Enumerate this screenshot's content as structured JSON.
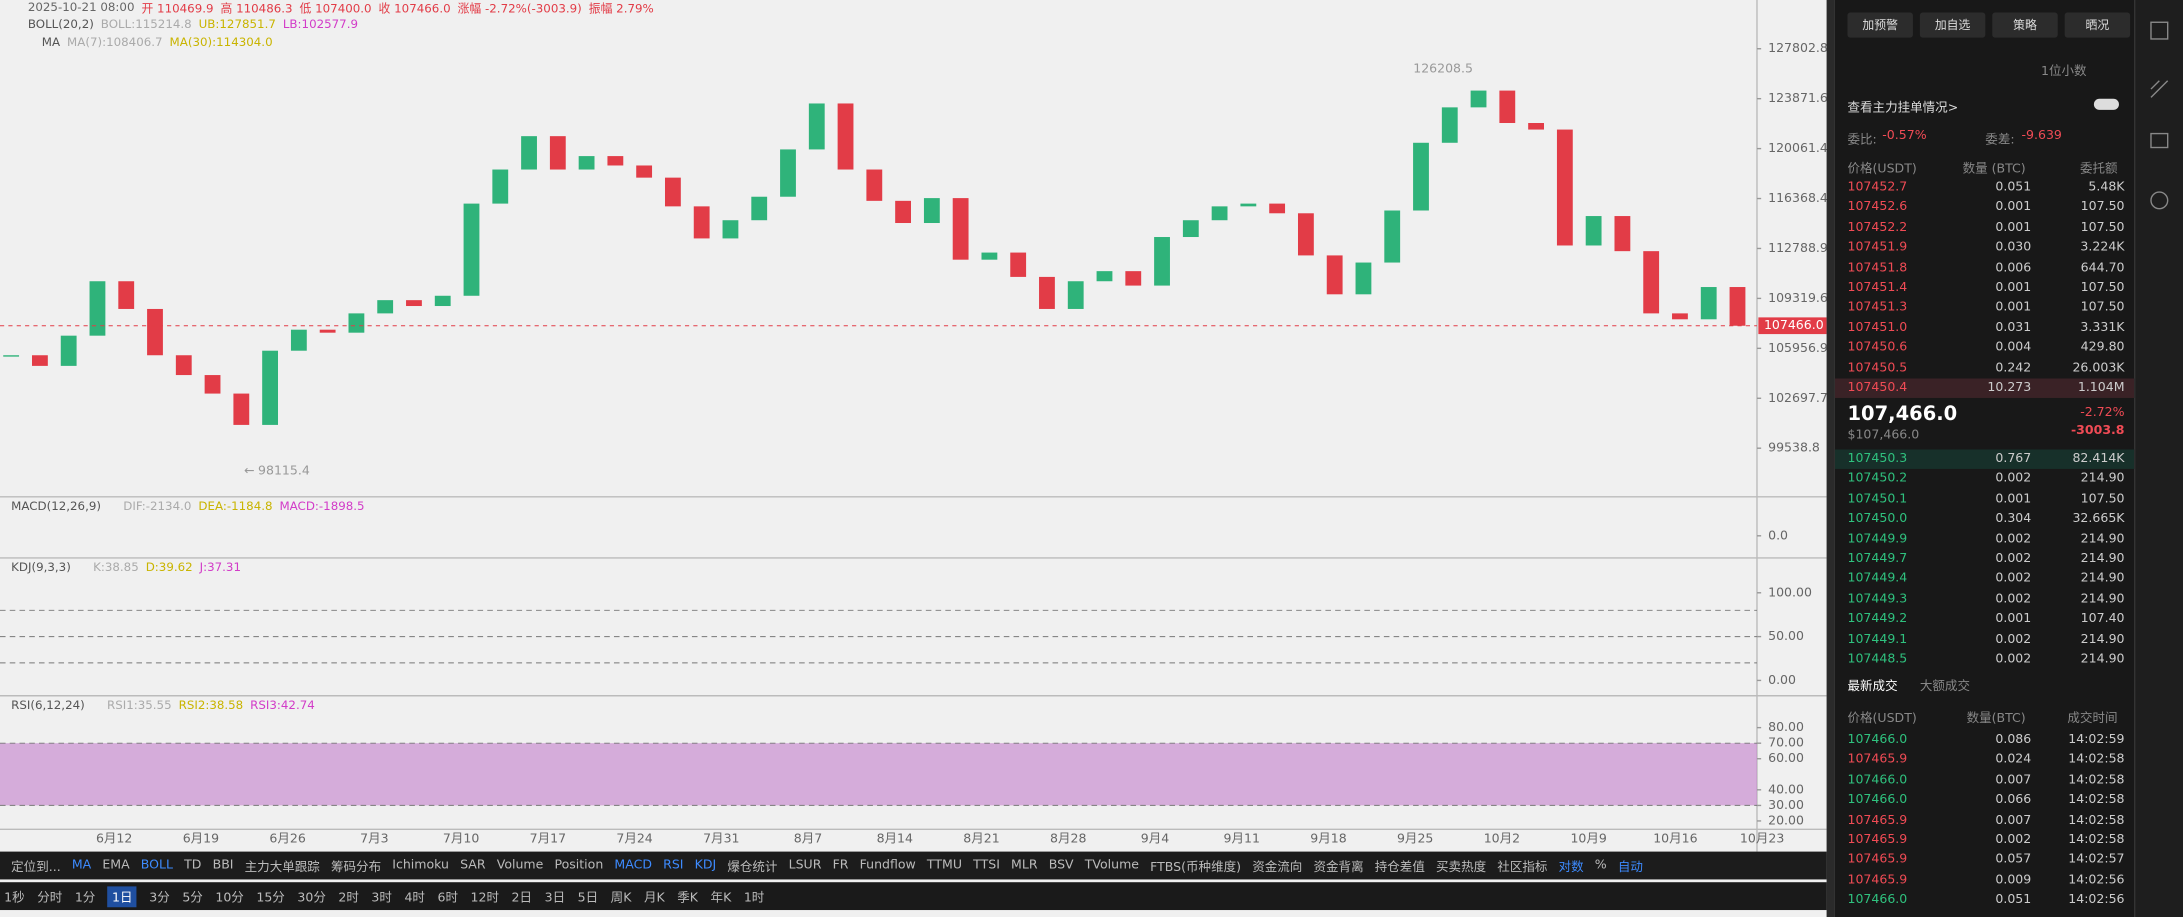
{
  "header": {
    "ohlc": [
      "2025-10-21 08:00",
      "开 110469.9",
      "高 110486.3",
      "低 107400.0",
      "收 107466.0",
      "涨幅 -2.72%(-3003.9)",
      "振幅 2.79%"
    ],
    "boll": [
      "BOLL(20,2)",
      "BOLL:115214.8",
      "UB:127851.7",
      "LB:102577.9"
    ],
    "ma": [
      "MA",
      "MA(7):108406.7",
      "MA(30):114304.0"
    ]
  },
  "chart_data": {
    "type": "candlestick",
    "log_scale": true,
    "up_color": "#2fb37a",
    "down_color": "#e23c47",
    "close": [
      105500,
      104800,
      106800,
      110500,
      108600,
      105500,
      104200,
      103000,
      101000,
      105800,
      107200,
      107000,
      108300,
      109200,
      108800,
      109500,
      116000,
      118500,
      121000,
      118500,
      119500,
      118800,
      117900,
      115800,
      113500,
      114800,
      116500,
      120000,
      123500,
      118500,
      116200,
      114600,
      116400,
      112000,
      112500,
      110800,
      108600,
      110500,
      111200,
      110200,
      113600,
      114800,
      115800,
      116000,
      115300,
      112300,
      109600,
      111800,
      115500,
      120500,
      123200,
      124500,
      122000,
      121500,
      113000,
      115100,
      112600,
      108300,
      107900,
      110100,
      107466
    ],
    "ylim": [
      96560,
      131760
    ],
    "yticks": [
      {
        "value": 127802.8,
        "label": "127802.8"
      },
      {
        "value": 123871.6,
        "label": "123871.6"
      },
      {
        "value": 120061.4,
        "label": "120061.4"
      },
      {
        "value": 116368.4,
        "label": "116368.4"
      },
      {
        "value": 112788.9,
        "label": "112788.9"
      },
      {
        "value": 109319.6,
        "label": "109319.6"
      },
      {
        "value": 105956.9,
        "label": "105956.9"
      },
      {
        "value": 102697.7,
        "label": "102697.7"
      },
      {
        "value": 99538.8,
        "label": "99538.8"
      }
    ],
    "last_price": {
      "value": 107466.0,
      "label": "107466.0"
    },
    "high_label": {
      "value": 126208.5,
      "label": "126208.5"
    },
    "low_label": {
      "value": 98115.4,
      "label": "98115.4"
    },
    "categories": [
      "6月12",
      "6月19",
      "6月26",
      "7月3",
      "7月10",
      "7月17",
      "7月24",
      "7月31",
      "8月7",
      "8月14",
      "8月21",
      "8月28",
      "9月4",
      "9月11",
      "9月18",
      "9月25",
      "10月2",
      "10月9",
      "10月16",
      "10月23"
    ]
  },
  "indicators": [
    {
      "legend": [
        "MACD(12,26,9)",
        "DIF:-2134.0",
        "DEA:-1184.8",
        "MACD:-1898.5"
      ],
      "ylim": [
        -2500,
        4400
      ],
      "yticks": [
        {
          "value": 0,
          "label": "0.0"
        }
      ],
      "levels": []
    },
    {
      "legend": [
        "KDJ(9,3,3)",
        "K:38.85",
        "D:39.62",
        "J:37.31"
      ],
      "ylim": [
        -17.5,
        139.7
      ],
      "yticks": [
        {
          "value": 100,
          "label": "100.00"
        },
        {
          "value": 50,
          "label": "50.00"
        },
        {
          "value": 0,
          "label": "0.00"
        }
      ],
      "levels": [
        80,
        50,
        20
      ]
    },
    {
      "legend": [
        "RSI(6,12,24)",
        "RSI1:35.55",
        "RSI2:38.58",
        "RSI3:42.74"
      ],
      "ylim": [
        14.6,
        100.5
      ],
      "yticks": [
        {
          "value": 80,
          "label": "80.00"
        },
        {
          "value": 70,
          "label": "70.00"
        },
        {
          "value": 60,
          "label": "60.00"
        },
        {
          "value": 40,
          "label": "40.00"
        },
        {
          "value": 30,
          "label": "30.00"
        },
        {
          "value": 20,
          "label": "20.00"
        }
      ],
      "levels": [
        70,
        30
      ],
      "band": [
        30,
        70
      ]
    }
  ],
  "toolbar": [
    {
      "text": "定位到...",
      "active": false
    },
    {
      "text": "MA",
      "active": true
    },
    {
      "text": "EMA",
      "active": false
    },
    {
      "text": "BOLL",
      "active": true
    },
    {
      "text": "TD",
      "active": false
    },
    {
      "text": "BBI",
      "active": false
    },
    {
      "text": "主力大单跟踪",
      "active": false
    },
    {
      "text": "筹码分布",
      "active": false
    },
    {
      "text": "Ichimoku",
      "active": false
    },
    {
      "text": "SAR",
      "active": false
    },
    {
      "text": "Volume",
      "active": false
    },
    {
      "text": "Position",
      "active": false
    },
    {
      "text": "MACD",
      "active": true
    },
    {
      "text": "RSI",
      "active": true
    },
    {
      "text": "KDJ",
      "active": true
    },
    {
      "text": "爆仓统计",
      "active": false
    },
    {
      "text": "LSUR",
      "active": false
    },
    {
      "text": "FR",
      "active": false
    },
    {
      "text": "Fundflow",
      "active": false
    },
    {
      "text": "TTMU",
      "active": false
    },
    {
      "text": "TTSI",
      "active": false
    },
    {
      "text": "MLR",
      "active": false
    },
    {
      "text": "BSV",
      "active": false
    },
    {
      "text": "TVolume",
      "active": false
    },
    {
      "text": "FTBS(币种维度)",
      "active": false
    },
    {
      "text": "资金流向",
      "active": false
    },
    {
      "text": "资金背离",
      "active": false
    },
    {
      "text": "持仓差值",
      "active": false
    },
    {
      "text": "买卖热度",
      "active": false
    },
    {
      "text": "社区指标",
      "active": false
    },
    {
      "text": "对数",
      "active": true
    },
    {
      "text": "%",
      "active": false
    },
    {
      "text": "自动",
      "active": true
    }
  ],
  "intervals": [
    {
      "text": "1秒",
      "active": false
    },
    {
      "text": "分时",
      "active": false
    },
    {
      "text": "1分",
      "active": false
    },
    {
      "text": "1日",
      "active": true
    },
    {
      "text": "3分",
      "active": false
    },
    {
      "text": "5分",
      "active": false
    },
    {
      "text": "10分",
      "active": false
    },
    {
      "text": "15分",
      "active": false
    },
    {
      "text": "30分",
      "active": false
    },
    {
      "text": "2时",
      "active": false
    },
    {
      "text": "3时",
      "active": false
    },
    {
      "text": "4时",
      "active": false
    },
    {
      "text": "6时",
      "active": false
    },
    {
      "text": "12时",
      "active": false
    },
    {
      "text": "2日",
      "active": false
    },
    {
      "text": "3日",
      "active": false
    },
    {
      "text": "5日",
      "active": false
    },
    {
      "text": "周K",
      "active": false
    },
    {
      "text": "月K",
      "active": false
    },
    {
      "text": "季K",
      "active": false
    },
    {
      "text": "年K",
      "active": false
    },
    {
      "text": "1时",
      "active": false
    }
  ],
  "panel": {
    "buttons": [
      "加预警",
      "加自选",
      "策略",
      "晒况"
    ],
    "precision": "1位小数",
    "main_orders": "查看主力挂单情况>",
    "ratio_label": "委比:",
    "ratio": "-0.57%",
    "diff_label": "委差:",
    "diff": "-9.639",
    "book_header": [
      "价格(USDT)",
      "数量 (BTC)",
      "委托额"
    ],
    "asks": [
      [
        "107452.7",
        "0.051",
        "5.48K"
      ],
      [
        "107452.6",
        "0.001",
        "107.50"
      ],
      [
        "107452.2",
        "0.001",
        "107.50"
      ],
      [
        "107451.9",
        "0.030",
        "3.224K"
      ],
      [
        "107451.8",
        "0.006",
        "644.70"
      ],
      [
        "107451.4",
        "0.001",
        "107.50"
      ],
      [
        "107451.3",
        "0.001",
        "107.50"
      ],
      [
        "107451.0",
        "0.031",
        "3.331K"
      ],
      [
        "107450.6",
        "0.004",
        "429.80"
      ],
      [
        "107450.5",
        "0.242",
        "26.003K"
      ],
      [
        "107450.4",
        "10.273",
        "1.104M"
      ]
    ],
    "mid_price": "107,466.0",
    "mid_usd": "$107,466.0",
    "change_pct": "-2.72%",
    "change": "-3003.8",
    "bids": [
      [
        "107450.3",
        "0.767",
        "82.414K"
      ],
      [
        "107450.2",
        "0.002",
        "214.90"
      ],
      [
        "107450.1",
        "0.001",
        "107.50"
      ],
      [
        "107450.0",
        "0.304",
        "32.665K"
      ],
      [
        "107449.9",
        "0.002",
        "214.90"
      ],
      [
        "107449.7",
        "0.002",
        "214.90"
      ],
      [
        "107449.4",
        "0.002",
        "214.90"
      ],
      [
        "107449.3",
        "0.002",
        "214.90"
      ],
      [
        "107449.2",
        "0.001",
        "107.40"
      ],
      [
        "107449.1",
        "0.002",
        "214.90"
      ],
      [
        "107448.5",
        "0.002",
        "214.90"
      ]
    ],
    "tabs": [
      "最新成交",
      "大额成交"
    ],
    "trade_header": [
      "价格(USDT)",
      "数量(BTC)",
      "成交时间"
    ],
    "trades": [
      [
        "107466.0",
        "0.086",
        "14:02:59",
        "buy"
      ],
      [
        "107465.9",
        "0.024",
        "14:02:58",
        "sell"
      ],
      [
        "107466.0",
        "0.007",
        "14:02:58",
        "buy"
      ],
      [
        "107466.0",
        "0.066",
        "14:02:58",
        "buy"
      ],
      [
        "107465.9",
        "0.007",
        "14:02:58",
        "sell"
      ],
      [
        "107465.9",
        "0.002",
        "14:02:58",
        "sell"
      ],
      [
        "107465.9",
        "0.057",
        "14:02:57",
        "sell"
      ],
      [
        "107465.9",
        "0.009",
        "14:02:56",
        "sell"
      ],
      [
        "107466.0",
        "0.051",
        "14:02:56",
        "buy"
      ]
    ]
  }
}
